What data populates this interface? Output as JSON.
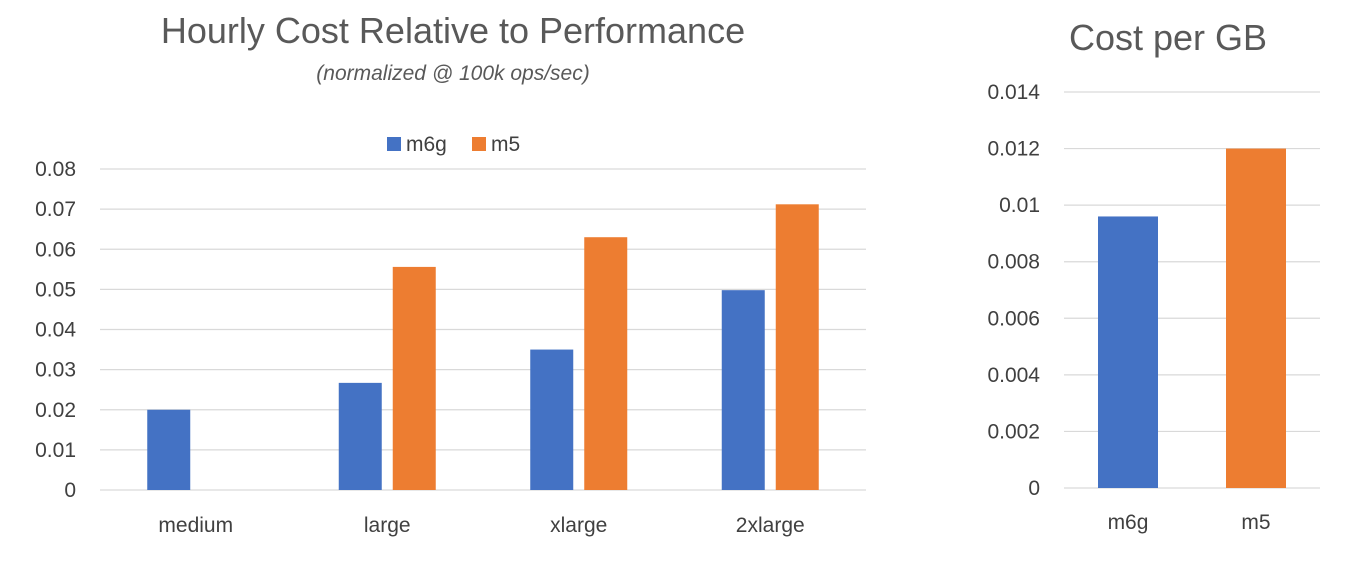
{
  "colors": {
    "m6g": "#4472c4",
    "m5": "#ed7d31",
    "grid": "#d9d9d9",
    "text": "#595959"
  },
  "chart_data": [
    {
      "type": "bar",
      "title": "Hourly Cost Relative to Performance",
      "subtitle": "(normalized @ 100k ops/sec)",
      "xlabel": "",
      "ylabel": "",
      "categories": [
        "medium",
        "large",
        "xlarge",
        "2xlarge"
      ],
      "series": [
        {
          "name": "m6g",
          "color": "#4472c4",
          "values": [
            0.02,
            0.0267,
            0.035,
            0.0498
          ]
        },
        {
          "name": "m5",
          "color": "#ed7d31",
          "values": [
            null,
            0.0556,
            0.063,
            0.0712
          ]
        }
      ],
      "ylim": [
        0,
        0.08
      ],
      "yticks": [
        "0",
        "0.01",
        "0.02",
        "0.03",
        "0.04",
        "0.05",
        "0.06",
        "0.07",
        "0.08"
      ],
      "grid": true,
      "legend": "top-center"
    },
    {
      "type": "bar",
      "title": "Cost per GB",
      "xlabel": "",
      "ylabel": "",
      "categories": [
        "m6g",
        "m5"
      ],
      "series": [
        {
          "values": [
            0.0096,
            0.012
          ],
          "colors": [
            "#4472c4",
            "#ed7d31"
          ]
        }
      ],
      "ylim": [
        0,
        0.014
      ],
      "yticks": [
        "0",
        "0.002",
        "0.004",
        "0.006",
        "0.008",
        "0.01",
        "0.012",
        "0.014"
      ],
      "grid": true,
      "legend": "none"
    }
  ]
}
